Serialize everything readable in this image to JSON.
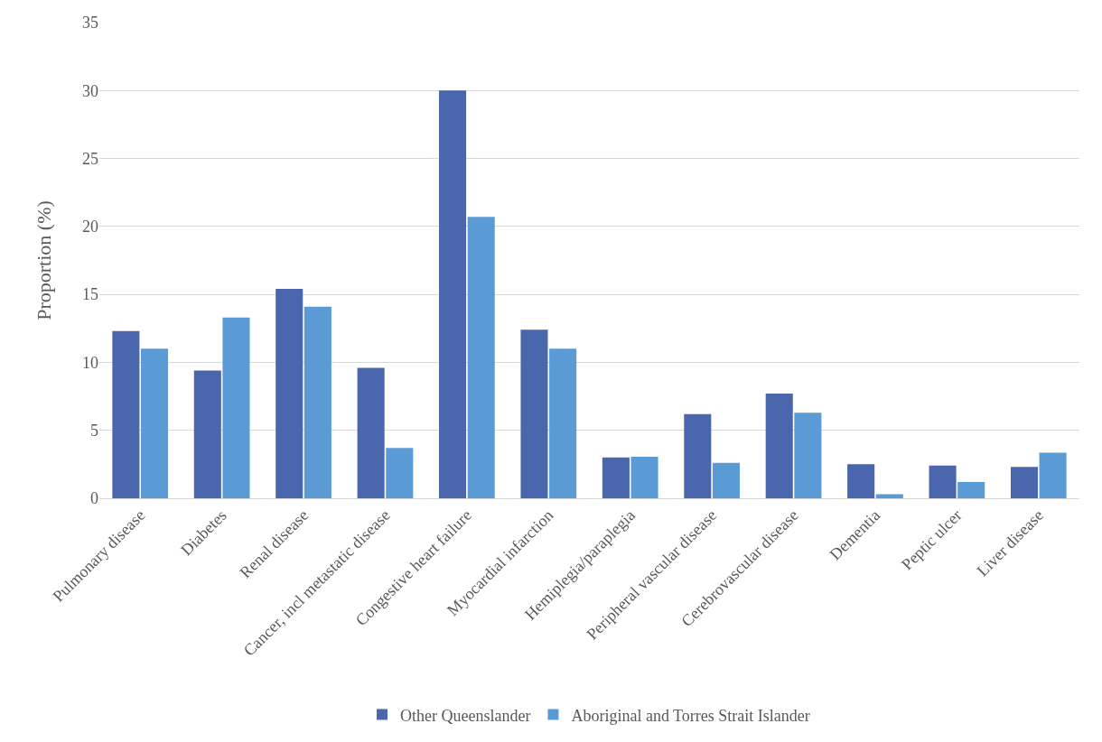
{
  "chart_data": {
    "type": "bar",
    "ylabel": "Proportion (%)",
    "categories": [
      "Pulmonary disease",
      "Diabetes",
      "Renal disease",
      "Cancer, incl metastatic disease",
      "Congestive heart failure",
      "Myocardial infarction",
      "Hemiplegia/paraplegia",
      "Peripheral vascular disease",
      "Cerebrovascular disease",
      "Dementia",
      "Peptic ulcer",
      "Liver disease"
    ],
    "series": [
      {
        "name": "Other Queenslander",
        "color": "#4a66ac",
        "values": [
          12.3,
          9.4,
          15.4,
          9.6,
          30.0,
          12.4,
          3.0,
          6.2,
          7.7,
          2.5,
          2.4,
          2.3
        ]
      },
      {
        "name": "Aboriginal and Torres Strait Islander",
        "color": "#5b9bd5",
        "values": [
          11.0,
          13.3,
          14.1,
          3.7,
          20.7,
          11.0,
          3.05,
          2.6,
          6.3,
          0.3,
          1.2,
          3.35
        ]
      }
    ],
    "ylim": [
      0,
      35
    ],
    "yticks": [
      0,
      5,
      10,
      15,
      20,
      25,
      30,
      35
    ],
    "grid": "y",
    "legend": "bottom"
  }
}
